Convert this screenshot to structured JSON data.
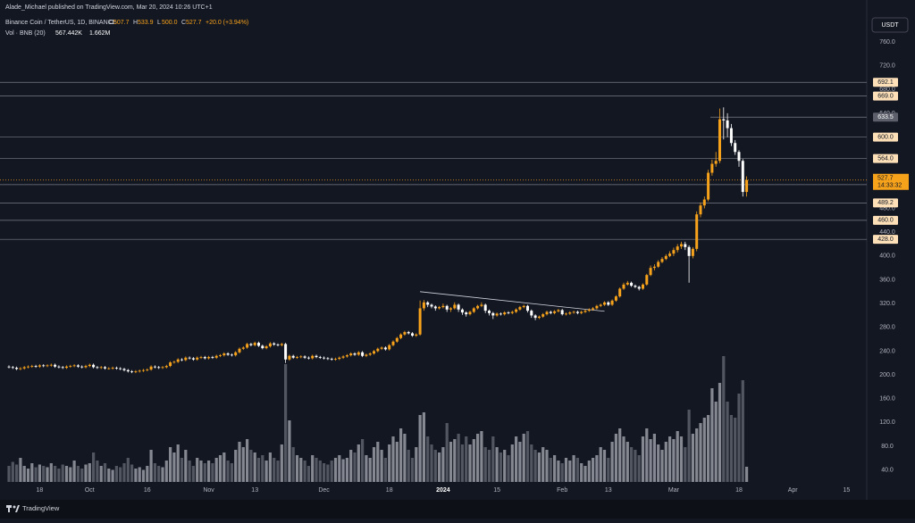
{
  "header": {
    "publisher": "Alade_Michael published on TradingView.com, Mar 20, 2024 10:26 UTC+1",
    "symbol": "Binance Coin / TetherUS, 1D, BINANCE",
    "ohlc": [
      {
        "key": "O",
        "value": "507.7"
      },
      {
        "key": "H",
        "value": "533.9"
      },
      {
        "key": "L",
        "value": "500.0"
      },
      {
        "key": "C",
        "value": "527.7"
      }
    ],
    "change": "+20.0 (+3.94%)",
    "volume_title": "Vol · BNB (20)",
    "volume_value": "567.442K",
    "volume_ma": "1.662M",
    "currency": "USDT"
  },
  "footer": {
    "brand": "TradingView"
  },
  "chart_data": {
    "type": "candlestick",
    "up_color": "#f7a21b",
    "down_color": "#ffffff",
    "volume_up_color": "#9a9ca4",
    "volume_down_color": "#5e616b",
    "grid": false,
    "ylim": [
      20,
      805
    ],
    "yticks": [
      {
        "value": 760,
        "label": "760.0"
      },
      {
        "value": 720,
        "label": "720.0"
      },
      {
        "value": 680,
        "label": "680.0"
      },
      {
        "value": 640,
        "label": "640.0"
      },
      {
        "value": 600,
        "label": "600.0"
      },
      {
        "value": 560,
        "label": "560.0"
      },
      {
        "value": 520,
        "label": "520.0"
      },
      {
        "value": 480,
        "label": "480.0"
      },
      {
        "value": 440,
        "label": "440.0"
      },
      {
        "value": 400,
        "label": "400.0"
      },
      {
        "value": 360,
        "label": "360.0"
      },
      {
        "value": 320,
        "label": "320.0"
      },
      {
        "value": 280,
        "label": "280.0"
      },
      {
        "value": 240,
        "label": "240.0"
      },
      {
        "value": 200,
        "label": "200.0"
      },
      {
        "value": 160,
        "label": "160.0"
      },
      {
        "value": 120,
        "label": "120.0"
      },
      {
        "value": 80,
        "label": "80.0"
      },
      {
        "value": 40,
        "label": "40.0"
      }
    ],
    "levels": [
      {
        "value": 692.1,
        "label": "692.1"
      },
      {
        "value": 669,
        "label": "669.0"
      },
      {
        "value": 633.5,
        "label": "633.5",
        "highlight": true
      },
      {
        "value": 600,
        "label": "600.0"
      },
      {
        "value": 564,
        "label": "564.0"
      },
      {
        "value": 520,
        "label": "520.0"
      },
      {
        "value": 489.2,
        "label": "489.2"
      },
      {
        "value": 460,
        "label": "460.0"
      },
      {
        "value": 428,
        "label": "428.0"
      }
    ],
    "last_price": {
      "value": 527.7,
      "label": "527.7",
      "countdown": "14:33:32"
    },
    "trendline": {
      "start": 340,
      "end": 307
    },
    "categories": [
      null,
      null,
      null,
      null,
      null,
      null,
      null,
      null,
      "18",
      null,
      null,
      null,
      null,
      null,
      null,
      null,
      null,
      null,
      null,
      null,
      null,
      "Oct",
      null,
      null,
      null,
      null,
      null,
      null,
      null,
      null,
      null,
      null,
      null,
      null,
      null,
      null,
      "16",
      null,
      null,
      null,
      null,
      null,
      null,
      null,
      null,
      null,
      null,
      null,
      null,
      null,
      null,
      null,
      "Nov",
      null,
      null,
      null,
      null,
      null,
      null,
      null,
      null,
      null,
      null,
      null,
      "13",
      null,
      null,
      null,
      null,
      null,
      null,
      null,
      null,
      null,
      null,
      null,
      null,
      null,
      null,
      null,
      null,
      null,
      "Dec",
      null,
      null,
      null,
      null,
      null,
      null,
      null,
      null,
      null,
      null,
      null,
      null,
      null,
      null,
      null,
      null,
      "18",
      null,
      null,
      null,
      null,
      null,
      null,
      null,
      null,
      null,
      null,
      null,
      null,
      null,
      "2024",
      null,
      null,
      null,
      null,
      null,
      null,
      null,
      null,
      null,
      null,
      null,
      null,
      null,
      "15",
      null,
      null,
      null,
      null,
      null,
      null,
      null,
      null,
      null,
      null,
      null,
      null,
      null,
      null,
      null,
      null,
      "Feb",
      null,
      null,
      null,
      null,
      null,
      null,
      null,
      null,
      null,
      null,
      null,
      "13",
      null,
      null,
      null,
      null,
      null,
      null,
      null,
      null,
      null,
      null,
      null,
      null,
      null,
      null,
      null,
      null,
      "Mar",
      null,
      null,
      null,
      null,
      null,
      null,
      null,
      null,
      null,
      null,
      null,
      null,
      null,
      null,
      null,
      null,
      "18",
      null,
      null,
      null,
      null,
      null,
      null,
      null,
      null,
      null,
      null,
      null,
      null,
      null,
      "Apr",
      null,
      null,
      null,
      null,
      null,
      null,
      null,
      null,
      null,
      null,
      null,
      null,
      null,
      "15",
      null,
      null,
      null,
      null,
      null
    ],
    "open": [
      214,
      213,
      212,
      210,
      211,
      213,
      214,
      215,
      214,
      216,
      215,
      216,
      217,
      214,
      213,
      212,
      214,
      215,
      216,
      214,
      213,
      215,
      217,
      213,
      212,
      213,
      211,
      211,
      212,
      211,
      210,
      208,
      206,
      205,
      206,
      207,
      208,
      209,
      214,
      213,
      212,
      213,
      215,
      221,
      222,
      226,
      225,
      229,
      228,
      226,
      229,
      230,
      228,
      230,
      229,
      232,
      233,
      236,
      234,
      233,
      238,
      244,
      246,
      252,
      250,
      254,
      249,
      245,
      248,
      253,
      251,
      250,
      252,
      226,
      232,
      229,
      230,
      231,
      229,
      228,
      232,
      230,
      229,
      228,
      227,
      226,
      227,
      229,
      231,
      233,
      236,
      234,
      238,
      232,
      234,
      236,
      240,
      244,
      246,
      243,
      250,
      256,
      262,
      268,
      272,
      270,
      266,
      268,
      312,
      322,
      318,
      315,
      312,
      314,
      316,
      310,
      312,
      318,
      310,
      305,
      302,
      306,
      312,
      316,
      318,
      308,
      304,
      300,
      303,
      302,
      305,
      304,
      306,
      310,
      314,
      316,
      308,
      300,
      296,
      298,
      302,
      306,
      304,
      307,
      309,
      302,
      303,
      305,
      306,
      304,
      306,
      308,
      310,
      312,
      316,
      318,
      322,
      318,
      325,
      332,
      345,
      352,
      355,
      350,
      348,
      345,
      352,
      368,
      380,
      382,
      390,
      395,
      400,
      404,
      410,
      416,
      420,
      415,
      400,
      412,
      470,
      485,
      495,
      540,
      555,
      560,
      630,
      628,
      615,
      590,
      575,
      560,
      507.7,
      null,
      null,
      null,
      null,
      null,
      null,
      null,
      null,
      null,
      null,
      null,
      null,
      null,
      null,
      null,
      null,
      null,
      null,
      null,
      null,
      null,
      null,
      null,
      null,
      null,
      null,
      null,
      null,
      null,
      null,
      null
    ],
    "high": [
      216,
      215,
      214,
      213,
      215,
      216,
      217,
      217,
      218,
      218,
      218,
      219,
      219,
      216,
      215,
      216,
      217,
      218,
      218,
      216,
      217,
      219,
      219,
      215,
      215,
      215,
      213,
      214,
      214,
      213,
      212,
      210,
      208,
      208,
      209,
      210,
      211,
      216,
      216,
      215,
      215,
      217,
      223,
      224,
      228,
      228,
      231,
      231,
      230,
      231,
      232,
      232,
      232,
      232,
      234,
      235,
      238,
      238,
      236,
      240,
      246,
      248,
      254,
      254,
      256,
      256,
      251,
      250,
      255,
      255,
      253,
      254,
      254,
      234,
      234,
      232,
      233,
      233,
      231,
      234,
      234,
      232,
      231,
      230,
      229,
      229,
      231,
      233,
      235,
      238,
      238,
      240,
      240,
      236,
      238,
      242,
      246,
      248,
      248,
      252,
      258,
      264,
      270,
      274,
      274,
      272,
      270,
      325,
      326,
      324,
      320,
      317,
      316,
      320,
      318,
      314,
      322,
      320,
      312,
      307,
      308,
      314,
      318,
      322,
      320,
      310,
      306,
      305,
      305,
      307,
      307,
      308,
      312,
      316,
      318,
      318,
      310,
      302,
      300,
      304,
      308,
      308,
      309,
      311,
      311,
      305,
      307,
      308,
      308,
      308,
      310,
      312,
      314,
      318,
      320,
      324,
      324,
      327,
      334,
      347,
      355,
      358,
      357,
      352,
      350,
      354,
      370,
      384,
      386,
      393,
      398,
      403,
      408,
      414,
      420,
      424,
      424,
      418,
      415,
      475,
      490,
      500,
      545,
      562,
      575,
      648,
      650,
      640,
      622,
      595,
      578,
      563,
      533.9,
      null,
      null,
      null,
      null,
      null,
      null,
      null,
      null,
      null,
      null,
      null,
      null,
      null,
      null,
      null,
      null,
      null,
      null,
      null,
      null,
      null,
      null,
      null,
      null,
      null,
      null,
      null,
      null,
      null,
      null,
      null
    ],
    "low": [
      211,
      210,
      208,
      208,
      209,
      211,
      212,
      212,
      212,
      213,
      213,
      214,
      212,
      211,
      210,
      210,
      212,
      213,
      212,
      211,
      211,
      213,
      211,
      210,
      210,
      209,
      209,
      209,
      209,
      208,
      206,
      204,
      203,
      203,
      204,
      205,
      206,
      207,
      211,
      210,
      210,
      211,
      213,
      219,
      220,
      223,
      223,
      226,
      224,
      224,
      227,
      226,
      226,
      227,
      227,
      230,
      231,
      232,
      231,
      231,
      236,
      242,
      244,
      248,
      248,
      247,
      243,
      243,
      246,
      249,
      248,
      248,
      220,
      224,
      227,
      227,
      228,
      227,
      226,
      226,
      228,
      227,
      226,
      225,
      224,
      224,
      225,
      227,
      229,
      231,
      232,
      232,
      230,
      230,
      232,
      234,
      238,
      242,
      241,
      241,
      248,
      254,
      260,
      266,
      268,
      264,
      264,
      266,
      308,
      314,
      312,
      308,
      310,
      312,
      306,
      306,
      310,
      306,
      301,
      298,
      300,
      304,
      310,
      314,
      304,
      300,
      294,
      298,
      300,
      300,
      302,
      302,
      304,
      308,
      312,
      305,
      296,
      292,
      294,
      296,
      300,
      302,
      302,
      305,
      300,
      300,
      301,
      303,
      302,
      302,
      304,
      306,
      308,
      310,
      314,
      316,
      316,
      316,
      323,
      330,
      343,
      350,
      348,
      346,
      342,
      343,
      350,
      366,
      376,
      380,
      388,
      393,
      398,
      400,
      406,
      412,
      410,
      355,
      396,
      408,
      465,
      480,
      492,
      535,
      550,
      556,
      596,
      600,
      585,
      570,
      550,
      500,
      500,
      null,
      null,
      null,
      null,
      null,
      null,
      null,
      null,
      null,
      null,
      null,
      null,
      null,
      null,
      null,
      null,
      null,
      null,
      null,
      null,
      null,
      null,
      null,
      null,
      null,
      null,
      null,
      null,
      null,
      null,
      null
    ],
    "close": [
      213,
      212,
      210,
      211,
      213,
      214,
      215,
      214,
      216,
      215,
      216,
      217,
      214,
      213,
      212,
      214,
      215,
      216,
      214,
      213,
      215,
      217,
      213,
      212,
      213,
      211,
      211,
      212,
      211,
      210,
      208,
      206,
      205,
      206,
      207,
      208,
      209,
      214,
      213,
      212,
      213,
      215,
      221,
      222,
      226,
      225,
      229,
      228,
      226,
      229,
      230,
      228,
      230,
      229,
      232,
      233,
      236,
      234,
      233,
      238,
      244,
      246,
      252,
      250,
      254,
      249,
      245,
      248,
      253,
      251,
      250,
      252,
      226,
      232,
      229,
      230,
      231,
      229,
      228,
      232,
      230,
      229,
      228,
      227,
      226,
      227,
      229,
      231,
      233,
      236,
      234,
      238,
      232,
      234,
      236,
      240,
      244,
      246,
      243,
      250,
      256,
      262,
      268,
      272,
      270,
      266,
      268,
      312,
      322,
      318,
      315,
      312,
      314,
      316,
      310,
      312,
      318,
      310,
      305,
      302,
      306,
      312,
      316,
      318,
      308,
      304,
      300,
      303,
      302,
      305,
      304,
      306,
      310,
      314,
      316,
      308,
      300,
      296,
      298,
      302,
      306,
      304,
      307,
      309,
      302,
      303,
      305,
      306,
      304,
      306,
      308,
      310,
      312,
      316,
      318,
      322,
      318,
      325,
      332,
      345,
      352,
      355,
      350,
      348,
      345,
      352,
      368,
      380,
      382,
      390,
      395,
      400,
      404,
      410,
      416,
      420,
      415,
      400,
      412,
      470,
      485,
      495,
      540,
      555,
      560,
      630,
      628,
      615,
      590,
      575,
      560,
      507.7,
      527.7,
      null,
      null,
      null,
      null,
      null,
      null,
      null,
      null,
      null,
      null,
      null,
      null,
      null,
      null,
      null,
      null,
      null,
      null,
      null,
      null,
      null,
      null,
      null,
      null,
      null,
      null,
      null,
      null,
      null,
      null,
      null
    ],
    "volume": [
      600,
      750,
      650,
      900,
      600,
      500,
      700,
      550,
      650,
      600,
      550,
      700,
      600,
      500,
      650,
      600,
      550,
      800,
      600,
      500,
      650,
      700,
      1100,
      800,
      600,
      700,
      500,
      450,
      600,
      550,
      700,
      900,
      650,
      500,
      550,
      450,
      600,
      1200,
      700,
      600,
      550,
      800,
      1300,
      1100,
      1400,
      900,
      1200,
      800,
      600,
      900,
      800,
      700,
      800,
      700,
      900,
      1000,
      1100,
      800,
      700,
      1200,
      1500,
      1300,
      1600,
      1200,
      1100,
      900,
      1000,
      800,
      1100,
      900,
      800,
      1400,
      4400,
      2300,
      1300,
      1000,
      900,
      800,
      600,
      1000,
      900,
      800,
      700,
      650,
      800,
      900,
      1000,
      850,
      900,
      1200,
      1100,
      1400,
      1600,
      1000,
      900,
      1300,
      1500,
      1200,
      900,
      1400,
      1700,
      1500,
      2000,
      1800,
      1200,
      900,
      1300,
      2500,
      2600,
      1700,
      1400,
      1200,
      1100,
      1300,
      2200,
      1500,
      1600,
      1800,
      1400,
      1700,
      1400,
      1600,
      1800,
      1900,
      1300,
      1200,
      1700,
      1300,
      1100,
      1200,
      1000,
      1400,
      1700,
      1500,
      1800,
      1900,
      1400,
      1200,
      1100,
      1300,
      1200,
      900,
      1000,
      800,
      700,
      900,
      800,
      1000,
      900,
      700,
      600,
      800,
      900,
      1000,
      1300,
      1200,
      900,
      1500,
      1800,
      2000,
      1700,
      1500,
      1300,
      1200,
      1000,
      1700,
      2000,
      1600,
      1800,
      1400,
      1200,
      1500,
      1700,
      1600,
      1900,
      1700,
      1300,
      2700,
      1800,
      2000,
      2200,
      2400,
      2500,
      3500,
      3000,
      3700,
      4700,
      3000,
      2500,
      2400,
      3300,
      3800,
      567.442,
      null,
      null,
      null,
      null,
      null,
      null,
      null,
      null,
      null,
      null,
      null,
      null,
      null,
      null,
      null,
      null,
      null,
      null,
      null,
      null,
      null,
      null,
      null,
      null,
      null,
      null,
      null,
      null,
      null,
      null,
      null
    ]
  }
}
